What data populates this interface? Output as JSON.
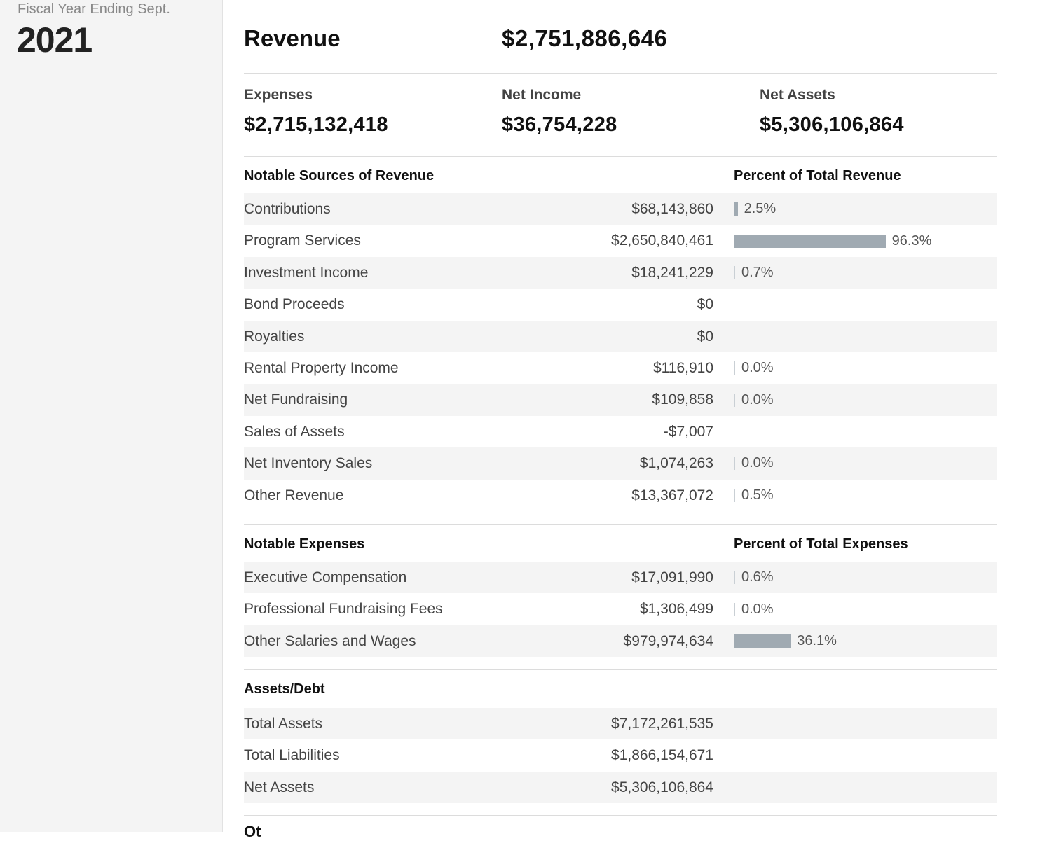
{
  "sidebar": {
    "fiscal_label": "Fiscal Year Ending Sept.",
    "year": "2021"
  },
  "summary": {
    "revenue_label": "Revenue",
    "revenue_value": "$2,751,886,646",
    "expenses_label": "Expenses",
    "expenses_value": "$2,715,132,418",
    "net_income_label": "Net Income",
    "net_income_value": "$36,754,228",
    "net_assets_label": "Net Assets",
    "net_assets_value": "$5,306,106,864"
  },
  "revenue_sources": {
    "title": "Notable Sources of Revenue",
    "pct_header": "Percent of Total Revenue",
    "rows": [
      {
        "label": "Contributions",
        "value": "$68,143,860",
        "pct": "2.5%",
        "fraction": 0.025
      },
      {
        "label": "Program Services",
        "value": "$2,650,840,461",
        "pct": "96.3%",
        "fraction": 0.963
      },
      {
        "label": "Investment Income",
        "value": "$18,241,229",
        "pct": "0.7%",
        "fraction": 0.007
      },
      {
        "label": "Bond Proceeds",
        "value": "$0",
        "pct": "",
        "fraction": null
      },
      {
        "label": "Royalties",
        "value": "$0",
        "pct": "",
        "fraction": null
      },
      {
        "label": "Rental Property Income",
        "value": "$116,910",
        "pct": "0.0%",
        "fraction": 0.0
      },
      {
        "label": "Net Fundraising",
        "value": "$109,858",
        "pct": "0.0%",
        "fraction": 0.0
      },
      {
        "label": "Sales of Assets",
        "value": "-$7,007",
        "pct": "",
        "fraction": null
      },
      {
        "label": "Net Inventory Sales",
        "value": "$1,074,263",
        "pct": "0.0%",
        "fraction": 0.0
      },
      {
        "label": "Other Revenue",
        "value": "$13,367,072",
        "pct": "0.5%",
        "fraction": 0.005
      }
    ]
  },
  "expenses": {
    "title": "Notable Expenses",
    "pct_header": "Percent of Total Expenses",
    "rows": [
      {
        "label": "Executive Compensation",
        "value": "$17,091,990",
        "pct": "0.6%",
        "fraction": 0.006
      },
      {
        "label": "Professional Fundraising Fees",
        "value": "$1,306,499",
        "pct": "0.0%",
        "fraction": 0.0
      },
      {
        "label": "Other Salaries and Wages",
        "value": "$979,974,634",
        "pct": "36.1%",
        "fraction": 0.361
      }
    ]
  },
  "assets_debt": {
    "title": "Assets/Debt",
    "rows": [
      {
        "label": "Total Assets",
        "value": "$7,172,261,535"
      },
      {
        "label": "Total Liabilities",
        "value": "$1,866,154,671"
      },
      {
        "label": "Net Assets",
        "value": "$5,306,106,864"
      }
    ]
  },
  "next_section_partial": "Ot"
}
